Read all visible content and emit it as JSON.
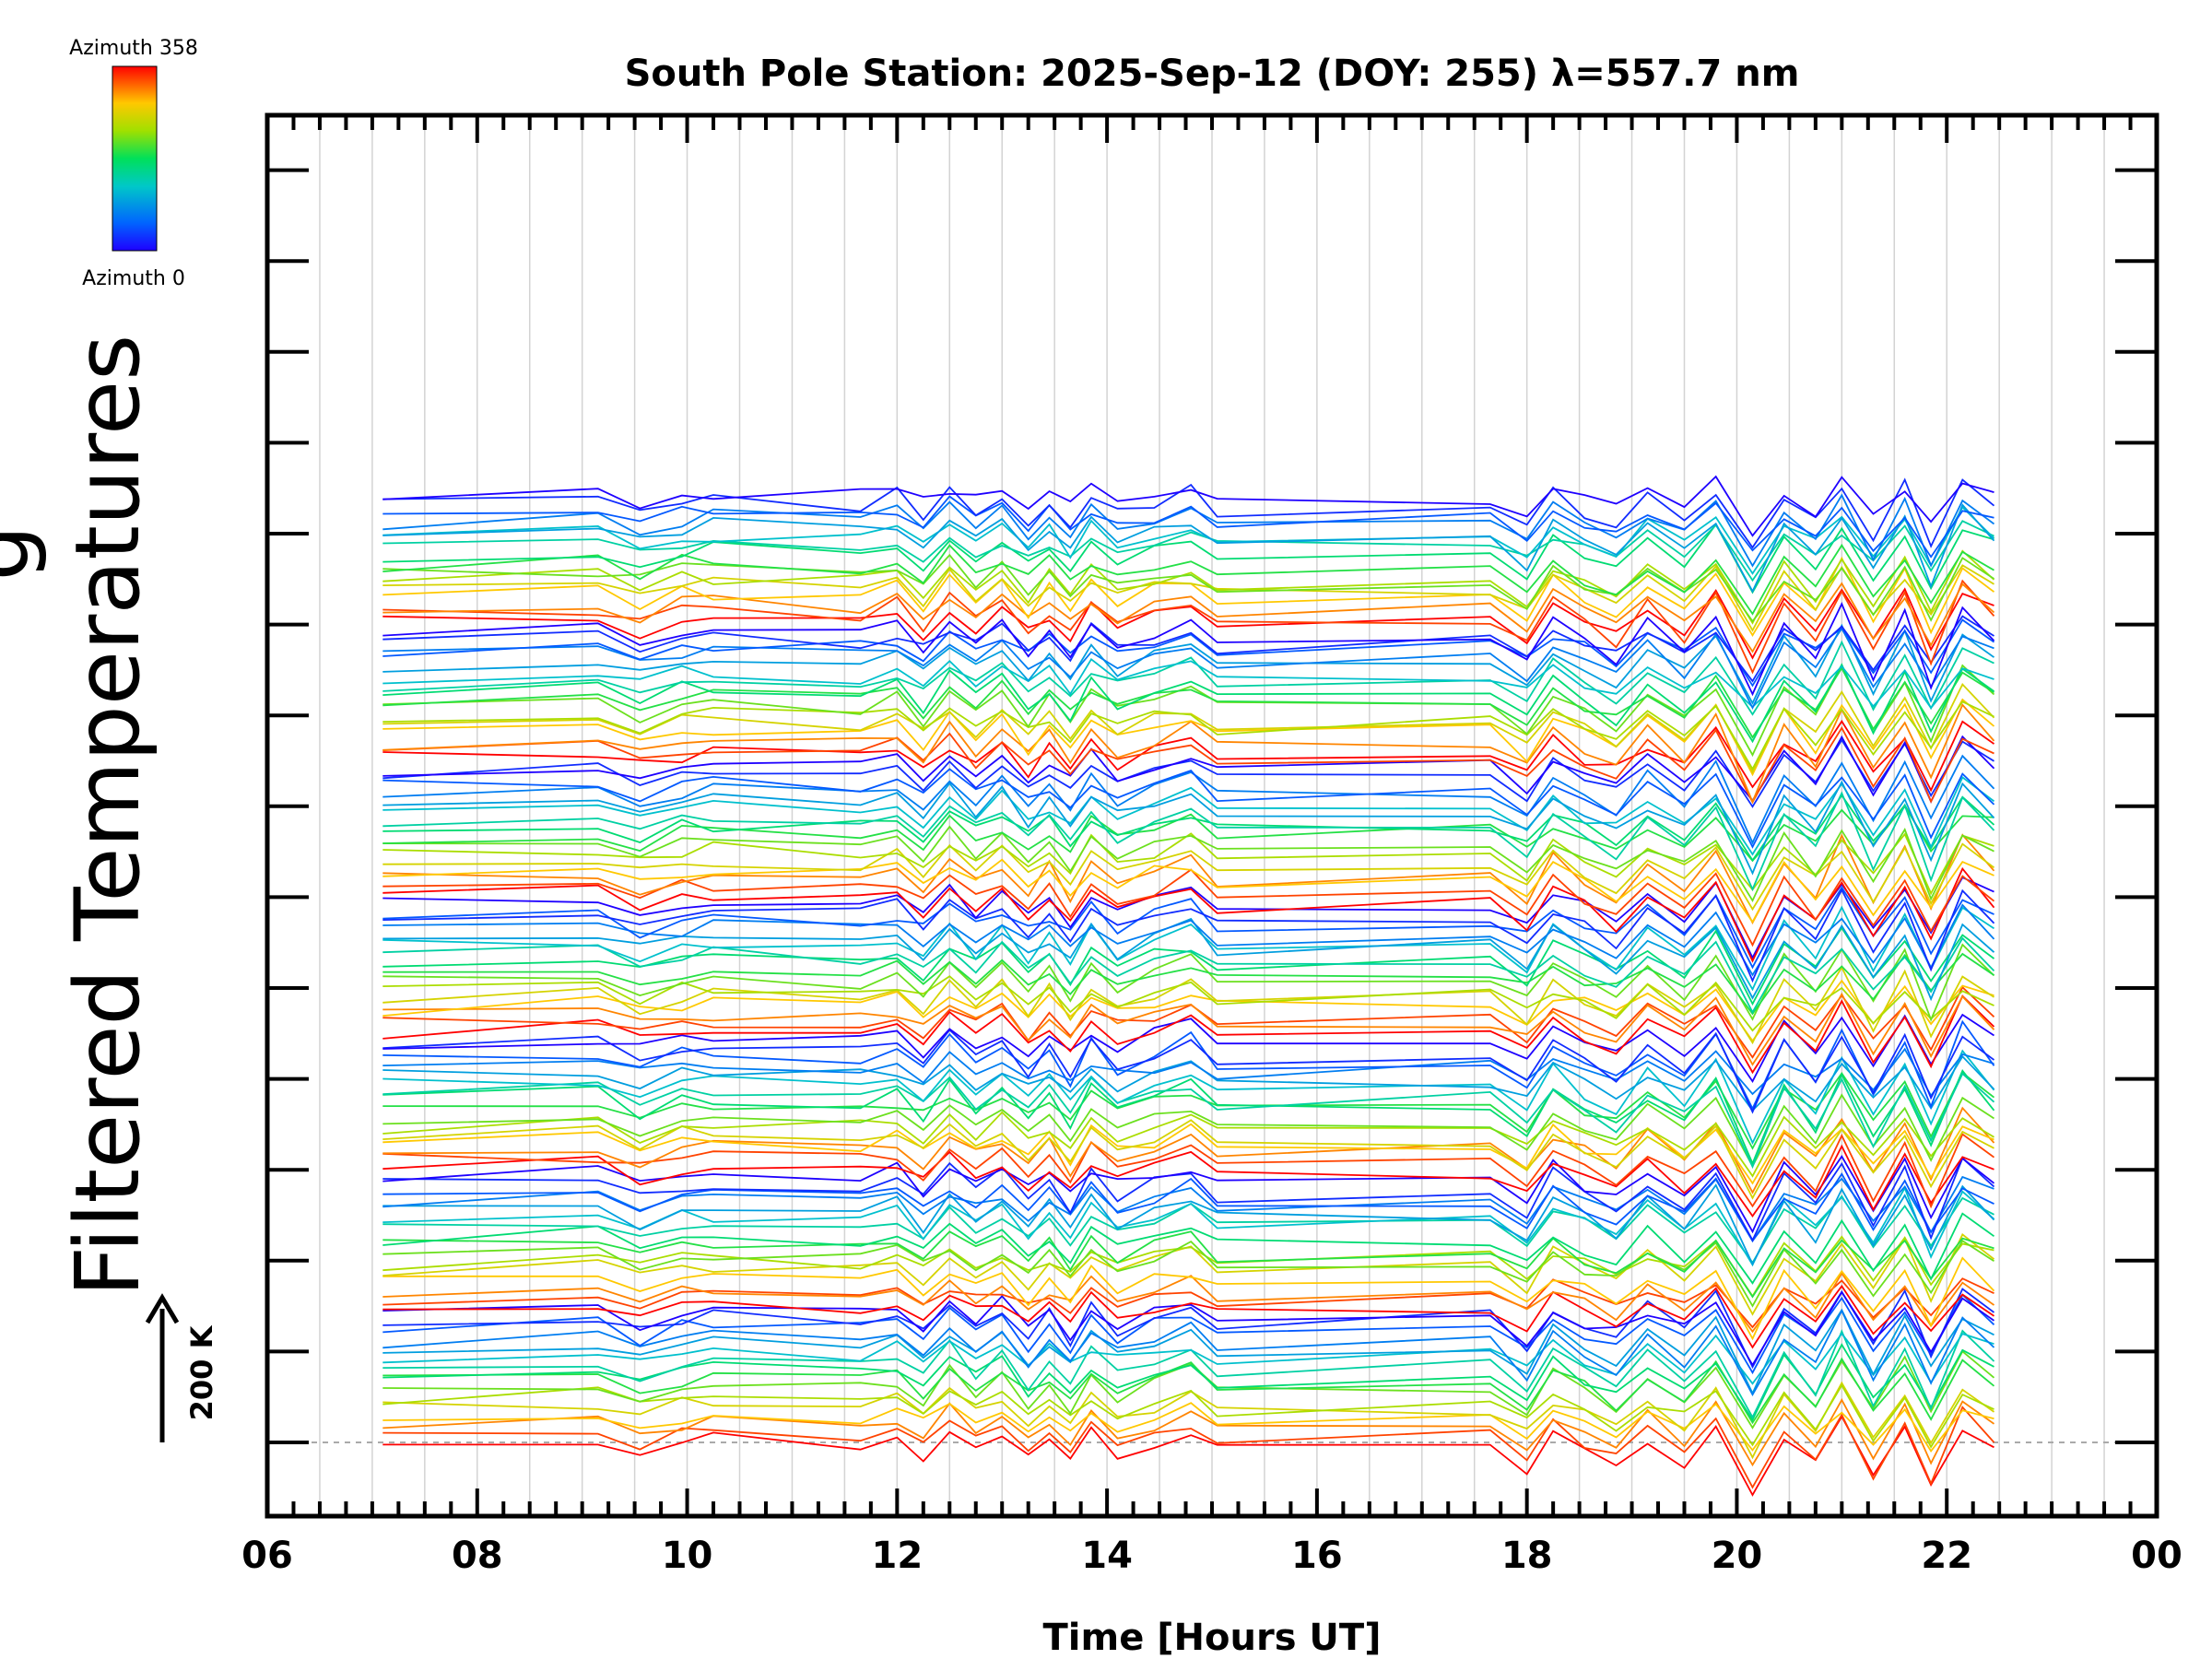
{
  "chart_data": {
    "type": "line",
    "title": "South Pole Station: 2025-Sep-12 (DOY: 255) λ=557.7 nm",
    "xlabel": "Time [Hours UT]",
    "ylabel": "Filtered Temperatures",
    "ylabel_fragment": "g",
    "xlim": [
      6,
      24
    ],
    "x_ticks": [
      "06",
      "08",
      "10",
      "12",
      "14",
      "16",
      "18",
      "20",
      "22",
      "00"
    ],
    "x_tick_values": [
      6,
      8,
      10,
      12,
      14,
      16,
      18,
      20,
      22,
      24
    ],
    "y_ticks_count": 15,
    "scale_bar_label": "200 K",
    "scale_bar_kelvin": 200,
    "colorbar": {
      "top_label": "Azimuth 358",
      "bottom_label": "Azimuth 0",
      "min": 0,
      "max": 358
    },
    "azimuth_groups": 7,
    "lines_per_group": 16,
    "sample_times": [
      7.1,
      9.15,
      9.55,
      9.95,
      10.25,
      11.65,
      12.0,
      12.25,
      12.5,
      12.75,
      13.0,
      13.25,
      13.45,
      13.65,
      13.85,
      14.1,
      14.45,
      14.8,
      15.05,
      17.65,
      18.0,
      18.25,
      18.55,
      18.85,
      19.15,
      19.5,
      19.8,
      20.15,
      20.45,
      20.75,
      21.0,
      21.3,
      21.6,
      21.85,
      22.15,
      22.45
    ],
    "common_perturbation_K": [
      0,
      10,
      -15,
      5,
      8,
      0,
      15,
      -20,
      25,
      -10,
      20,
      -25,
      10,
      -30,
      20,
      -15,
      5,
      25,
      -10,
      0,
      -40,
      20,
      -10,
      -35,
      15,
      -25,
      30,
      -80,
      20,
      -30,
      40,
      -50,
      30,
      -60,
      40,
      0
    ],
    "colors": {
      "axis": "#000000",
      "grid": "#d3d3d3",
      "baseline": "#aaaaaa"
    }
  }
}
